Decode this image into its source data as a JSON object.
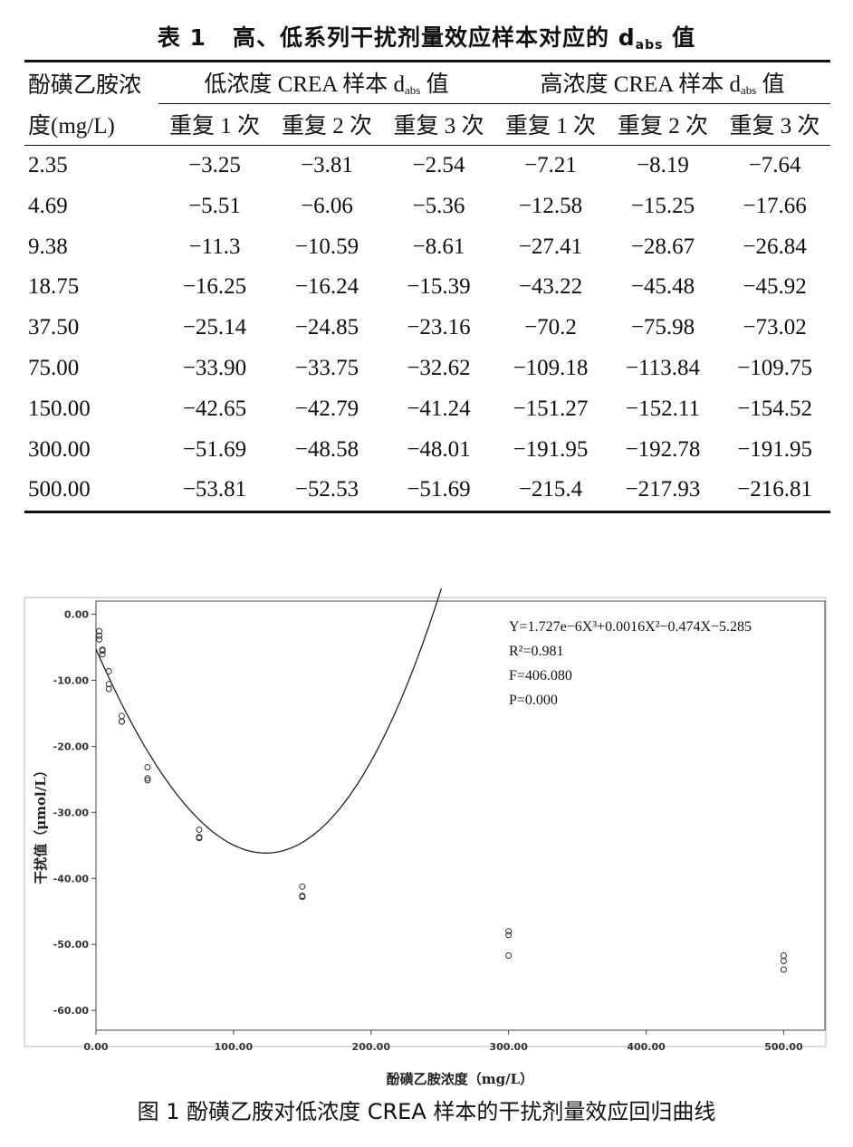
{
  "table": {
    "caption_prefix": "表 1",
    "caption_main": "高、低系列干扰剂量效应样本对应的 d",
    "caption_sub": "abs",
    "caption_end": " 值",
    "col0_line1": "酚磺乙胺浓",
    "col0_line2": "度(mg/L)",
    "group_low_pre": "低浓度 CREA 样本 d",
    "group_high_pre": "高浓度 CREA 样本 d",
    "group_sub": "abs",
    "group_end": " 值",
    "rep_labels": [
      "重复 1 次",
      "重复 2 次",
      "重复 3 次",
      "重复 1 次",
      "重复 2 次",
      "重复 3 次"
    ],
    "rows": [
      [
        "2.35",
        "−3.25",
        "−3.81",
        "−2.54",
        "−7.21",
        "−8.19",
        "−7.64"
      ],
      [
        "4.69",
        "−5.51",
        "−6.06",
        "−5.36",
        "−12.58",
        "−15.25",
        "−17.66"
      ],
      [
        "9.38",
        "−11.3",
        "−10.59",
        "−8.61",
        "−27.41",
        "−28.67",
        "−26.84"
      ],
      [
        "18.75",
        "−16.25",
        "−16.24",
        "−15.39",
        "−43.22",
        "−45.48",
        "−45.92"
      ],
      [
        "37.50",
        "−25.14",
        "−24.85",
        "−23.16",
        "−70.2",
        "−75.98",
        "−73.02"
      ],
      [
        "75.00",
        "−33.90",
        "−33.75",
        "−32.62",
        "−109.18",
        "−113.84",
        "−109.75"
      ],
      [
        "150.00",
        "−42.65",
        "−42.79",
        "−41.24",
        "−151.27",
        "−152.11",
        "−154.52"
      ],
      [
        "300.00",
        "−51.69",
        "−48.58",
        "−48.01",
        "−191.95",
        "−192.78",
        "−191.95"
      ],
      [
        "500.00",
        "−53.81",
        "−52.53",
        "−51.69",
        "−215.4",
        "−217.93",
        "−216.81"
      ]
    ]
  },
  "figure": {
    "caption": "图 1   酚磺乙胺对低浓度 CREA 样本的干扰剂量效应回归曲线"
  },
  "chart_data": {
    "type": "scatter",
    "xlabel": "酚磺乙胺浓度（mg/L）",
    "ylabel": "干扰值（μmol/L）",
    "xlim": [
      0,
      530
    ],
    "ylim": [
      -63,
      2
    ],
    "xticks": [
      0,
      100,
      200,
      300,
      400,
      500
    ],
    "xtick_labels": [
      "0.00",
      "100.00",
      "200.00",
      "300.00",
      "400.00",
      "500.00"
    ],
    "yticks": [
      0,
      -10,
      -20,
      -30,
      -40,
      -50,
      -60
    ],
    "ytick_labels": [
      "0.00",
      "-10.00",
      "-20.00",
      "-30.00",
      "-40.00",
      "-50.00",
      "-60.00"
    ],
    "grid": false,
    "points": {
      "x": [
        2.35,
        2.35,
        2.35,
        4.69,
        4.69,
        4.69,
        9.38,
        9.38,
        9.38,
        18.75,
        18.75,
        18.75,
        37.5,
        37.5,
        37.5,
        75,
        75,
        75,
        150,
        150,
        150,
        300,
        300,
        300,
        500,
        500,
        500
      ],
      "y": [
        -3.25,
        -3.81,
        -2.54,
        -5.51,
        -6.06,
        -5.36,
        -11.3,
        -10.59,
        -8.61,
        -16.25,
        -16.24,
        -15.39,
        -25.14,
        -24.85,
        -23.16,
        -33.9,
        -33.75,
        -32.62,
        -42.65,
        -42.79,
        -41.24,
        -51.69,
        -48.58,
        -48.01,
        -53.81,
        -52.53,
        -51.69
      ]
    },
    "fit": {
      "type": "cubic",
      "coefficients": {
        "a3": 1.727e-06,
        "a2": 0.0016,
        "a1": -0.474,
        "a0": -5.285
      }
    },
    "annotations": [
      "Y=1.727e−6X³+0.0016X²−0.474X−5.285",
      "R²=0.981",
      "F=406.080",
      "P=0.000"
    ]
  }
}
